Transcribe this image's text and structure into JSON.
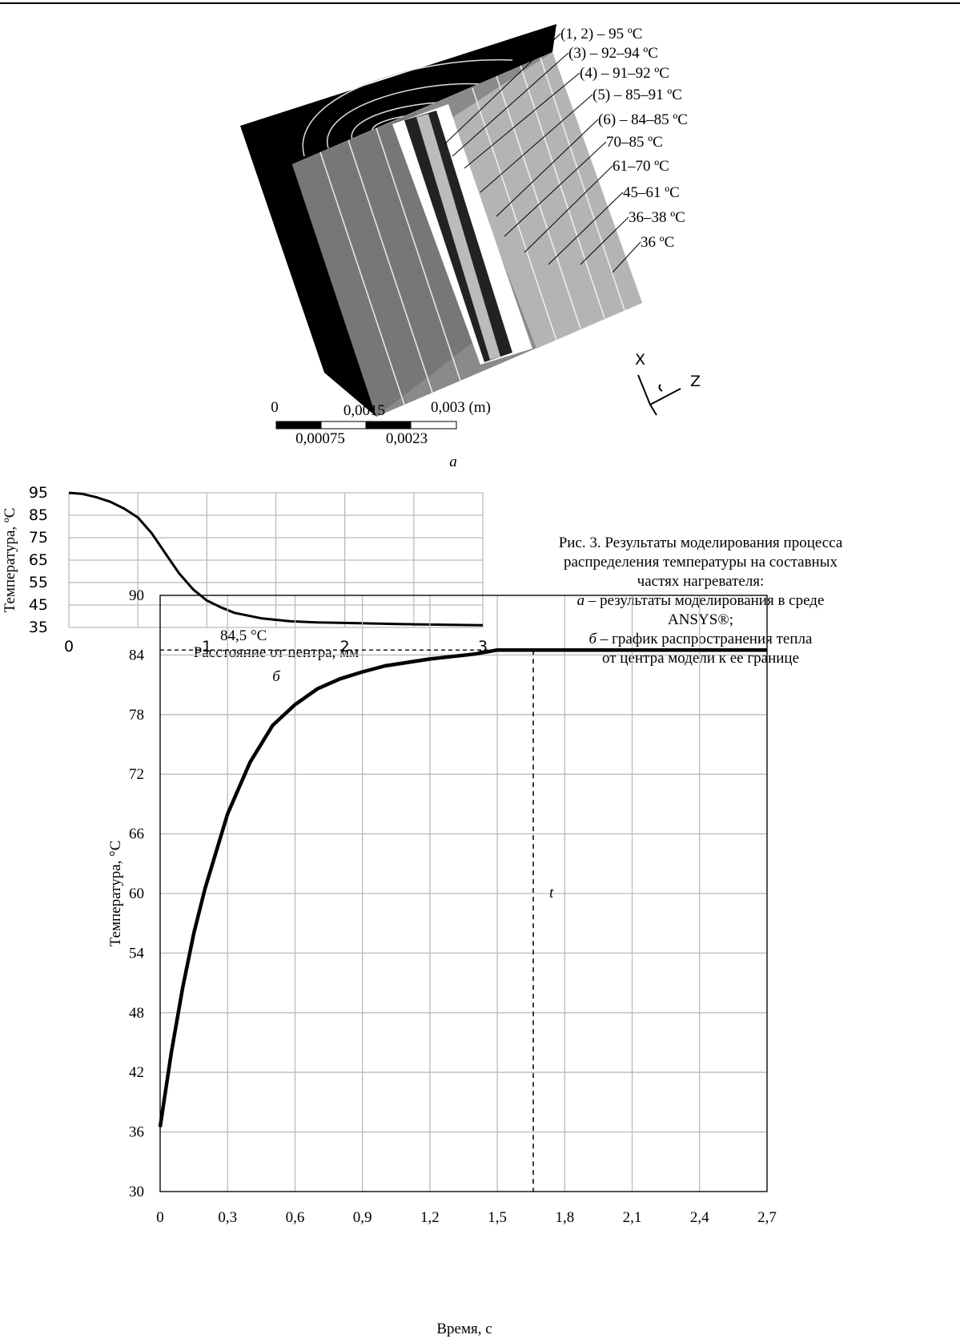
{
  "figure_a": {
    "labels": [
      "(1, 2) – 95 ºC",
      "(3) – 92–94 ºC",
      "(4) – 91–92 ºC",
      "(5) – 85–91 ºC",
      "(6) – 84–85 ºC",
      "70–85 ºC",
      "61–70 ºC",
      "45–61 ºC",
      "36–38 ºC",
      "36 ºC"
    ],
    "scale_labels": [
      "0",
      "0,0015",
      "0,003 (m)",
      "0,00075",
      "0,0023"
    ],
    "axes": [
      "X",
      "Z"
    ],
    "caption": "а"
  },
  "chart_data": [
    {
      "type": "line",
      "y_label": "Температура, ºС",
      "x_label": "Расстояние от центра, мм",
      "panel_label": "б",
      "x": [
        0,
        0.1,
        0.2,
        0.3,
        0.4,
        0.5,
        0.6,
        0.7,
        0.8,
        0.9,
        1.0,
        1.1,
        1.2,
        1.4,
        1.6,
        1.8,
        2.0,
        2.5,
        3.0
      ],
      "values": [
        95,
        94.5,
        93,
        91,
        88,
        84,
        77,
        68,
        59,
        52,
        47,
        44,
        41.5,
        39,
        37.8,
        37.2,
        37,
        36.4,
        36
      ],
      "color": "#000000",
      "xlim": [
        0,
        3
      ],
      "ylim": [
        35,
        95
      ],
      "xticks": [
        0,
        1,
        2,
        3
      ],
      "yticks": [
        35,
        45,
        55,
        65,
        75,
        85,
        95
      ],
      "x_minor_gridlines": [
        0.5,
        1.5,
        2.5
      ],
      "grid": true
    },
    {
      "type": "line",
      "y_label": "Температура, °С",
      "x_label": "Время, с",
      "x": [
        0,
        0.05,
        0.1,
        0.15,
        0.2,
        0.3,
        0.4,
        0.5,
        0.6,
        0.7,
        0.8,
        0.9,
        1.0,
        1.2,
        1.4,
        1.5,
        2.7
      ],
      "values": [
        36.5,
        44,
        50.5,
        56,
        60.5,
        68,
        73.2,
        76.9,
        79,
        80.6,
        81.6,
        82.3,
        82.9,
        83.6,
        84.1,
        84.5,
        84.5
      ],
      "color": "#000000",
      "xlim": [
        0,
        2.7
      ],
      "ylim": [
        30,
        90
      ],
      "xticks": [
        0,
        {
          "value": 0.3,
          "label": "0,3"
        },
        {
          "value": 0.6,
          "label": "0,6"
        },
        {
          "value": 0.9,
          "label": "0,9"
        },
        {
          "value": 1.2,
          "label": "1,2"
        },
        {
          "value": 1.5,
          "label": "1,5"
        },
        {
          "value": 1.8,
          "label": "1,8"
        },
        {
          "value": 2.1,
          "label": "2,1"
        },
        {
          "value": 2.4,
          "label": "2,4"
        },
        {
          "value": 2.7,
          "label": "2,7"
        }
      ],
      "yticks": [
        30,
        36,
        42,
        48,
        54,
        60,
        66,
        72,
        78,
        84,
        90
      ],
      "grid": true,
      "annotations": {
        "level": {
          "value": 84.5,
          "label": "84,5 °С"
        },
        "time_marker": {
          "value": 1.66,
          "label": "t"
        }
      }
    }
  ],
  "caption": {
    "title_lines": [
      "Рис. 3. Результаты моделирования процесса",
      "распределения температуры на составных",
      "частях нагревателя:"
    ],
    "item_a": {
      "letter": "а",
      "lines": [
        "– результаты моделирования в среде",
        "ANSYS®;"
      ]
    },
    "item_b": {
      "letter": "б",
      "lines": [
        "– график распространения тепла",
        "от центра модели к ее границе"
      ]
    }
  }
}
